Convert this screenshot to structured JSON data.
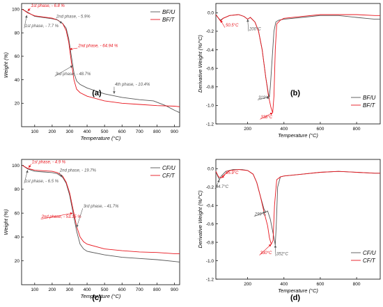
{
  "colors": {
    "untreated": "#555555",
    "treated": "#e8141c",
    "axis": "#000000"
  },
  "chart_data": [
    {
      "panel": "(a)",
      "type": "line",
      "xlabel": "Temperature (°C)",
      "ylabel": "Weight (%)",
      "xlim": [
        25,
        930
      ],
      "ylim": [
        0,
        105
      ],
      "xticks": [
        100,
        200,
        300,
        400,
        500,
        600,
        700,
        800,
        900
      ],
      "yticks": [
        20,
        40,
        60,
        80,
        100
      ],
      "legend": "top-right",
      "series": [
        {
          "name": "BF/U",
          "color_key": "untreated",
          "x": [
            30,
            60,
            100,
            150,
            200,
            230,
            260,
            280,
            295,
            310,
            325,
            340,
            360,
            400,
            500,
            600,
            700,
            780,
            850,
            900,
            930
          ],
          "y": [
            100,
            97.5,
            94,
            93,
            92,
            91,
            88,
            84,
            75,
            60,
            46,
            39,
            36,
            33,
            28,
            25,
            23,
            22,
            18,
            14,
            12
          ]
        },
        {
          "name": "BF/T",
          "color_key": "treated",
          "x": [
            30,
            60,
            100,
            150,
            200,
            230,
            260,
            280,
            295,
            310,
            325,
            340,
            360,
            400,
            500,
            600,
            700,
            800,
            900,
            930
          ],
          "y": [
            100,
            97,
            94.5,
            93.5,
            92.5,
            91,
            88,
            82,
            72,
            55,
            40,
            32,
            29,
            26,
            22,
            20,
            19,
            18,
            17.5,
            17
          ]
        }
      ],
      "annotations": [
        {
          "text": "1st phase, - 6.8 %",
          "color_key": "treated",
          "ax": 60,
          "ay": 98.5,
          "tx": 75,
          "ty": 101
        },
        {
          "text": "1st phase, - 7.7 %",
          "color_key": "untreated",
          "ax": 55,
          "ay": 95,
          "tx": 40,
          "ty": 84
        },
        {
          "text": "2nd phase, - 5.9%",
          "color_key": "untreated",
          "ax": 258,
          "ay": 88,
          "tx": 220,
          "ty": 92
        },
        {
          "text": "2nd phase, - 64.94 %",
          "color_key": "treated",
          "ax": 300,
          "ay": 66,
          "tx": 345,
          "ty": 67
        },
        {
          "text": "3rd phase, - 48.7%",
          "color_key": "untreated",
          "ax": 318,
          "ay": 52,
          "tx": 215,
          "ty": 43
        },
        {
          "text": "4th phase, - 10.4%",
          "color_key": "untreated",
          "ax": 555,
          "ay": 28,
          "tx": 555,
          "ty": 34
        }
      ]
    },
    {
      "panel": "(b)",
      "type": "line",
      "xlabel": "Temperature (°C)",
      "ylabel": "Derivative Weight (%/°C)",
      "xlim": [
        25,
        930
      ],
      "ylim": [
        -1.2,
        0.1
      ],
      "xticks": [
        200,
        400,
        600,
        800
      ],
      "yticks": [
        0.0,
        -0.2,
        -0.4,
        -0.6,
        -0.8,
        -1.0,
        -1.2
      ],
      "legend": "bottom-right",
      "series": [
        {
          "name": "BF/U",
          "color_key": "untreated",
          "x": [
            25,
            40,
            50.5,
            65,
            100,
            150,
            180,
            200,
            215,
            240,
            260,
            280,
            300,
            315,
            319,
            325,
            335,
            345,
            355,
            370,
            400,
            500,
            600,
            700,
            800,
            850,
            900,
            930
          ],
          "y": [
            -0.02,
            -0.06,
            -0.08,
            -0.06,
            -0.03,
            -0.02,
            -0.04,
            -0.07,
            -0.05,
            -0.1,
            -0.2,
            -0.4,
            -0.7,
            -0.88,
            -0.91,
            -0.8,
            -0.5,
            -0.2,
            -0.1,
            -0.08,
            -0.07,
            -0.05,
            -0.03,
            -0.03,
            -0.05,
            -0.06,
            -0.07,
            -0.07
          ]
        },
        {
          "name": "BF/T",
          "color_key": "treated",
          "x": [
            25,
            40,
            50.5,
            65,
            100,
            150,
            180,
            200,
            215,
            240,
            260,
            280,
            300,
            315,
            328,
            338,
            345,
            352,
            360,
            380,
            400,
            500,
            600,
            700,
            800,
            900,
            930
          ],
          "y": [
            -0.02,
            -0.06,
            -0.09,
            -0.06,
            -0.03,
            -0.02,
            -0.04,
            -0.07,
            -0.05,
            -0.1,
            -0.2,
            -0.4,
            -0.7,
            -0.9,
            -1.02,
            -1.08,
            -0.9,
            -0.4,
            -0.12,
            -0.08,
            -0.06,
            -0.04,
            -0.02,
            -0.02,
            -0.02,
            -0.03,
            -0.03
          ]
        }
      ],
      "annotations": [
        {
          "text": "50.5°C",
          "color_key": "treated",
          "ax": 50.5,
          "ay": -0.08,
          "tx": 75,
          "ty": -0.16
        },
        {
          "text": "200°C",
          "color_key": "untreated",
          "ax": 200,
          "ay": -0.07,
          "tx": 205,
          "ty": -0.2
        },
        {
          "text": "319°C",
          "color_key": "untreated",
          "ax": 319,
          "ay": -0.91,
          "tx": 255,
          "ty": -0.94
        },
        {
          "text": "338°C",
          "color_key": "treated",
          "ax": 338,
          "ay": -1.08,
          "tx": 268,
          "ty": -1.15
        }
      ]
    },
    {
      "panel": "(c)",
      "type": "line",
      "xlabel": "Temperature (°C)",
      "ylabel": "Weight (%)",
      "xlim": [
        25,
        930
      ],
      "ylim": [
        0,
        105
      ],
      "xticks": [
        100,
        200,
        300,
        400,
        500,
        600,
        700,
        800,
        900
      ],
      "yticks": [
        20,
        40,
        60,
        80,
        100
      ],
      "legend": "top-right",
      "series": [
        {
          "name": "CF/U",
          "color_key": "untreated",
          "x": [
            30,
            60,
            100,
            150,
            200,
            230,
            260,
            280,
            300,
            320,
            340,
            360,
            380,
            400,
            500,
            600,
            700,
            800,
            900,
            930
          ],
          "y": [
            100,
            97,
            95,
            94.5,
            94,
            93,
            90,
            85,
            75,
            60,
            45,
            34,
            30,
            28,
            25,
            23,
            22,
            21,
            19.5,
            19
          ]
        },
        {
          "name": "CF/T",
          "color_key": "treated",
          "x": [
            30,
            60,
            100,
            150,
            200,
            230,
            260,
            280,
            300,
            320,
            340,
            360,
            380,
            400,
            500,
            600,
            700,
            800,
            900,
            930
          ],
          "y": [
            100,
            97.5,
            96,
            95.5,
            95,
            94,
            91,
            86,
            77,
            63,
            49,
            40,
            36,
            34,
            30,
            28.5,
            27.5,
            27,
            26,
            26
          ]
        }
      ],
      "annotations": [
        {
          "text": "1st phase, - 4.9 %",
          "color_key": "treated",
          "ax": 65,
          "ay": 98,
          "tx": 80,
          "ty": 101
        },
        {
          "text": "1st phase, - 6.5 %",
          "color_key": "untreated",
          "ax": 60,
          "ay": 96,
          "tx": 40,
          "ty": 85
        },
        {
          "text": "2nd phase, - 19.7%",
          "color_key": "untreated",
          "ax": 258,
          "ay": 90,
          "tx": 240,
          "ty": 94
        },
        {
          "text": "2nd phase, - 53.35 %",
          "color_key": "treated",
          "ax": 318,
          "ay": 60,
          "tx": 135,
          "ty": 55
        },
        {
          "text": "3rd phase, - 41.7%",
          "color_key": "untreated",
          "ax": 340,
          "ay": 48,
          "tx": 375,
          "ty": 64
        }
      ]
    },
    {
      "panel": "(d)",
      "type": "line",
      "xlabel": "Temperature (°C)",
      "ylabel": "Derivative Weight (%/°C)",
      "xlim": [
        25,
        930
      ],
      "ylim": [
        -1.2,
        0.1
      ],
      "xticks": [
        200,
        400,
        600,
        800
      ],
      "yticks": [
        0.0,
        -0.2,
        -0.4,
        -0.6,
        -0.8,
        -1.0,
        -1.2
      ],
      "legend": "bottom-right",
      "series": [
        {
          "name": "CF/U",
          "color_key": "untreated",
          "x": [
            25,
            35,
            44.7,
            55,
            80,
            120,
            170,
            200,
            230,
            250,
            270,
            290,
            299,
            310,
            325,
            340,
            352,
            358,
            365,
            380,
            400,
            500,
            600,
            700,
            800,
            900,
            930
          ],
          "y": [
            -0.03,
            -0.08,
            -0.12,
            -0.08,
            -0.03,
            -0.01,
            -0.01,
            -0.02,
            -0.06,
            -0.15,
            -0.3,
            -0.44,
            -0.47,
            -0.46,
            -0.55,
            -0.7,
            -0.83,
            -0.6,
            -0.2,
            -0.09,
            -0.08,
            -0.06,
            -0.04,
            -0.03,
            -0.04,
            -0.05,
            -0.05
          ]
        },
        {
          "name": "CF/T",
          "color_key": "treated",
          "x": [
            25,
            40,
            55.9,
            70,
            100,
            150,
            200,
            230,
            250,
            270,
            290,
            310,
            320,
            330,
            340,
            348,
            360,
            380,
            400,
            500,
            600,
            700,
            800,
            900,
            930
          ],
          "y": [
            -0.03,
            -0.09,
            -0.1,
            -0.07,
            -0.02,
            -0.01,
            -0.02,
            -0.06,
            -0.15,
            -0.3,
            -0.47,
            -0.62,
            -0.75,
            -0.82,
            -0.78,
            -0.4,
            -0.12,
            -0.09,
            -0.08,
            -0.06,
            -0.04,
            -0.03,
            -0.04,
            -0.05,
            -0.05
          ]
        }
      ],
      "annotations": [
        {
          "text": "44.7°C",
          "color_key": "untreated",
          "ax": 44.7,
          "ay": -0.12,
          "tx": 20,
          "ty": -0.22
        },
        {
          "text": "55.9°C",
          "color_key": "treated",
          "ax": 55.9,
          "ay": -0.1,
          "tx": 75,
          "ty": -0.07
        },
        {
          "text": "299°C",
          "color_key": "untreated",
          "ax": 299,
          "ay": -0.47,
          "tx": 235,
          "ty": -0.52
        },
        {
          "text": "330°C",
          "color_key": "treated",
          "ax": 330,
          "ay": -0.82,
          "tx": 265,
          "ty": -0.94
        },
        {
          "text": "352°C",
          "color_key": "untreated",
          "ax": 352,
          "ay": -0.83,
          "tx": 355,
          "ty": -0.95
        }
      ]
    }
  ]
}
